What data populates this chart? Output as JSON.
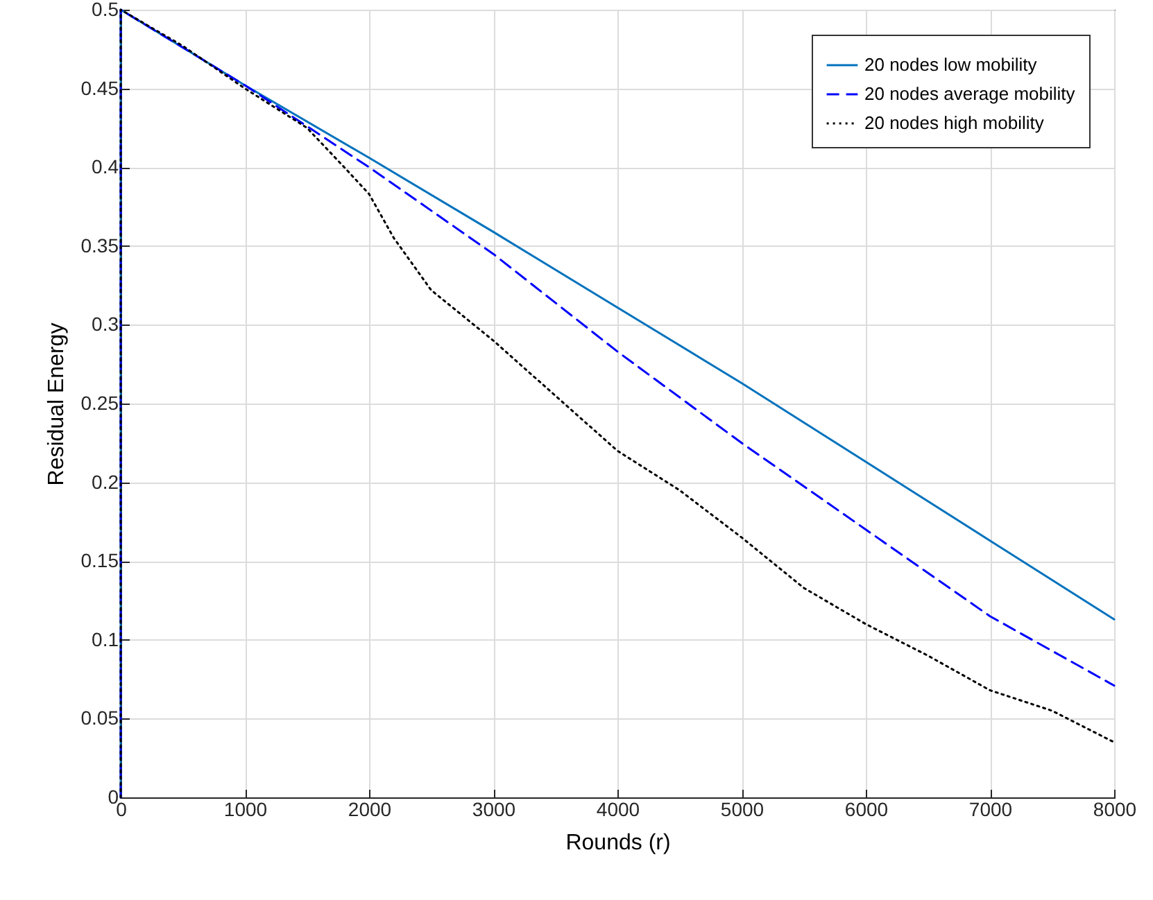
{
  "chart_data": {
    "type": "line",
    "xlabel": "Rounds (r)",
    "ylabel": "Residual Energy",
    "xlim": [
      0,
      8000
    ],
    "ylim": [
      0,
      0.5
    ],
    "xticks": [
      0,
      1000,
      2000,
      3000,
      4000,
      5000,
      6000,
      7000,
      8000
    ],
    "yticks": [
      0,
      0.05,
      0.1,
      0.15,
      0.2,
      0.25,
      0.3,
      0.35,
      0.4,
      0.45,
      0.5
    ],
    "grid": true,
    "legend": "top right",
    "series": [
      {
        "name": "20 nodes low mobility",
        "color": "#0072bd",
        "line_style": "solid",
        "x": [
          0,
          0,
          1000,
          2000,
          3000,
          4000,
          5000,
          6000,
          7000,
          8000
        ],
        "values": [
          0,
          0.5,
          0.452,
          0.406,
          0.359,
          0.311,
          0.263,
          0.213,
          0.163,
          0.113
        ]
      },
      {
        "name": "20 nodes average mobility",
        "color": "#0000ff",
        "line_style": "dashed",
        "x": [
          0,
          0,
          1000,
          2000,
          3000,
          4000,
          5000,
          6000,
          7000,
          8000
        ],
        "values": [
          0,
          0.5,
          0.452,
          0.4,
          0.345,
          0.283,
          0.225,
          0.17,
          0.115,
          0.071
        ]
      },
      {
        "name": "20 nodes high mobility",
        "color": "#000000",
        "line_style": "dotted",
        "x": [
          0,
          0,
          500,
          1000,
          1500,
          1800,
          2000,
          2200,
          2500,
          3000,
          3500,
          4000,
          4500,
          5000,
          5500,
          6000,
          6500,
          7000,
          7500,
          8000
        ],
        "values": [
          0,
          0.5,
          0.477,
          0.45,
          0.425,
          0.4,
          0.383,
          0.355,
          0.322,
          0.29,
          0.255,
          0.22,
          0.195,
          0.165,
          0.133,
          0.11,
          0.09,
          0.068,
          0.055,
          0.035
        ]
      }
    ]
  }
}
